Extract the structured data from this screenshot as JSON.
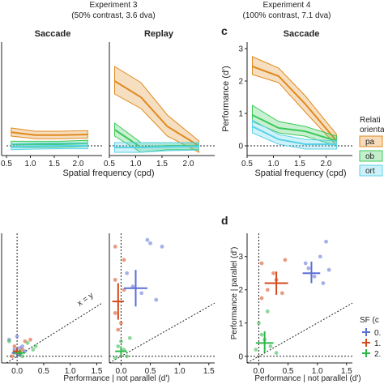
{
  "header": {
    "left_title": "Experiment 3",
    "left_sub": "(50% contrast, 3.6 dva)",
    "right_title": "Experiment 4",
    "right_sub": "(100% contrast, 7.1 dva)"
  },
  "panel_labels": {
    "c": "c",
    "d": "d"
  },
  "colors": {
    "parallel": "#e08a1e",
    "oblique": "#3cc95a",
    "orthogonal": "#5ad2e8",
    "sf_low": "#5b6fd6",
    "sf_mid": "#d44a1a",
    "sf_high": "#2fb84a"
  },
  "legend_orientation": {
    "title_line1": "Relati",
    "title_line2": "orienta",
    "items": [
      {
        "key": "parallel",
        "label": "pa"
      },
      {
        "key": "oblique",
        "label": "ob"
      },
      {
        "key": "orthogonal",
        "label": "ort"
      }
    ]
  },
  "legend_sf": {
    "title": "SF (c",
    "items": [
      {
        "key": "sf_low",
        "label": "0."
      },
      {
        "key": "sf_mid",
        "label": "1."
      },
      {
        "key": "sf_high",
        "label": "2."
      }
    ]
  },
  "chart_data": [
    {
      "id": "exp3_saccade",
      "type": "line",
      "title": "Saccade",
      "x": [
        0.6,
        1.1,
        1.6,
        2.2
      ],
      "xlim": [
        0.5,
        2.5
      ],
      "ylim": [
        -0.3,
        3.2
      ],
      "xticks": [
        "0.5",
        "1.0",
        "1.5",
        "2.0"
      ],
      "series": [
        {
          "key": "parallel",
          "values": [
            0.42,
            0.33,
            0.33,
            0.35
          ],
          "lower": [
            0.3,
            0.22,
            0.22,
            0.24
          ],
          "upper": [
            0.55,
            0.45,
            0.45,
            0.47
          ]
        },
        {
          "key": "oblique",
          "values": [
            0.05,
            0.05,
            0.05,
            0.08
          ],
          "lower": [
            -0.05,
            -0.05,
            -0.05,
            -0.02
          ],
          "upper": [
            0.14,
            0.14,
            0.14,
            0.17
          ]
        },
        {
          "key": "orthogonal",
          "values": [
            -0.03,
            -0.01,
            0.0,
            0.0
          ],
          "lower": [
            -0.12,
            -0.1,
            -0.09,
            -0.09
          ],
          "upper": [
            0.06,
            0.08,
            0.09,
            0.09
          ]
        }
      ]
    },
    {
      "id": "exp3_replay",
      "type": "line",
      "title": "Replay",
      "x": [
        0.6,
        1.1,
        1.6,
        2.2
      ],
      "xlim": [
        0.5,
        2.5
      ],
      "ylim": [
        -0.3,
        3.2
      ],
      "xticks": [
        "0.5",
        "1.0",
        "1.5",
        "2.0"
      ],
      "series": [
        {
          "key": "parallel",
          "values": [
            2.0,
            1.5,
            0.6,
            0.0
          ],
          "lower": [
            1.6,
            1.15,
            0.3,
            -0.2
          ],
          "upper": [
            2.45,
            1.95,
            0.95,
            0.15
          ]
        },
        {
          "key": "oblique",
          "values": [
            0.5,
            -0.05,
            0.0,
            0.0
          ],
          "lower": [
            0.3,
            -0.2,
            -0.12,
            -0.12
          ],
          "upper": [
            0.7,
            0.1,
            0.1,
            0.1
          ]
        },
        {
          "key": "orthogonal",
          "values": [
            -0.05,
            -0.05,
            -0.03,
            -0.02
          ],
          "lower": [
            -0.2,
            -0.2,
            -0.15,
            -0.13
          ],
          "upper": [
            0.1,
            0.1,
            0.1,
            0.1
          ]
        }
      ]
    },
    {
      "id": "exp4_saccade",
      "type": "line",
      "title": "Saccade",
      "x": [
        0.6,
        1.1,
        1.6,
        2.2
      ],
      "xlim": [
        0.5,
        2.5
      ],
      "ylim": [
        -0.3,
        3.2
      ],
      "yticks": [
        0,
        1,
        2,
        3
      ],
      "xticks": [
        "0.5",
        "1.0",
        "1.5",
        "2.0"
      ],
      "ylabel": "Performance (d')",
      "series": [
        {
          "key": "parallel",
          "values": [
            2.45,
            2.15,
            1.3,
            0.15
          ],
          "lower": [
            2.2,
            1.95,
            1.05,
            0.0
          ],
          "upper": [
            2.75,
            2.4,
            1.55,
            0.35
          ]
        },
        {
          "key": "oblique",
          "values": [
            0.95,
            0.55,
            0.45,
            0.15
          ],
          "lower": [
            0.75,
            0.4,
            0.3,
            0.0
          ],
          "upper": [
            1.25,
            0.75,
            0.6,
            0.3
          ]
        },
        {
          "key": "orthogonal",
          "values": [
            0.6,
            0.2,
            0.05,
            0.05
          ],
          "lower": [
            0.4,
            0.05,
            -0.1,
            -0.1
          ],
          "upper": [
            0.8,
            0.35,
            0.2,
            0.15
          ]
        }
      ]
    },
    {
      "id": "exp3_saccade_scatter",
      "type": "scatter",
      "xlim": [
        -0.2,
        1.6
      ],
      "ylim": [
        -0.2,
        3.7
      ],
      "xticks": [
        "0.0",
        "0.5",
        "1.0",
        "1.5"
      ],
      "diagonal_label": "x = y",
      "series": [
        {
          "key": "sf_low",
          "mean": [
            0.0,
            0.1
          ],
          "ci_x": [
            -0.1,
            0.1
          ],
          "ci_y": [
            -0.02,
            0.25
          ],
          "points": [
            [
              0.0,
              0.6
            ],
            [
              -0.15,
              0.5
            ],
            [
              0.05,
              0.25
            ],
            [
              0.15,
              0.15
            ],
            [
              -0.05,
              0.2
            ],
            [
              0.05,
              0.05
            ],
            [
              0.1,
              0.3
            ]
          ]
        },
        {
          "key": "sf_mid",
          "mean": [
            0.0,
            0.15
          ],
          "ci_x": [
            -0.08,
            0.08
          ],
          "ci_y": [
            0.05,
            0.25
          ],
          "points": [
            [
              -0.1,
              0.0
            ],
            [
              0.05,
              0.1
            ],
            [
              0.25,
              0.5
            ],
            [
              0.1,
              0.2
            ],
            [
              -0.05,
              0.3
            ],
            [
              0.15,
              0.45
            ]
          ]
        },
        {
          "key": "sf_high",
          "mean": [
            0.05,
            0.1
          ],
          "ci_x": [
            -0.05,
            0.15
          ],
          "ci_y": [
            0.0,
            0.2
          ],
          "points": [
            [
              -0.15,
              0.45
            ],
            [
              0.3,
              0.2
            ],
            [
              0.1,
              0.0
            ],
            [
              0.35,
              0.3
            ],
            [
              -0.05,
              0.1
            ],
            [
              0.2,
              0.4
            ]
          ]
        }
      ]
    },
    {
      "id": "exp3_replay_scatter",
      "type": "scatter",
      "xlim": [
        -0.2,
        1.6
      ],
      "ylim": [
        -0.2,
        3.7
      ],
      "xticks": [
        "0.0",
        "0.5",
        "1.0",
        "1.5"
      ],
      "series": [
        {
          "key": "sf_low",
          "mean": [
            0.25,
            2.05
          ],
          "ci_x": [
            0.05,
            0.45
          ],
          "ci_y": [
            1.5,
            2.6
          ],
          "points": [
            [
              0.5,
              3.4
            ],
            [
              0.7,
              3.3
            ],
            [
              0.45,
              3.5
            ],
            [
              0.1,
              2.5
            ],
            [
              0.2,
              2.1
            ],
            [
              0.6,
              1.7
            ],
            [
              0.35,
              1.9
            ]
          ]
        },
        {
          "key": "sf_mid",
          "mean": [
            -0.05,
            1.65
          ],
          "ci_x": [
            -0.15,
            0.05
          ],
          "ci_y": [
            1.1,
            2.2
          ],
          "points": [
            [
              -0.1,
              3.3
            ],
            [
              0.05,
              2.9
            ],
            [
              -0.1,
              2.3
            ],
            [
              0.05,
              2.0
            ],
            [
              -0.1,
              1.3
            ],
            [
              0.0,
              1.0
            ],
            [
              -0.05,
              0.8
            ]
          ]
        },
        {
          "key": "sf_high",
          "mean": [
            0.0,
            0.15
          ],
          "ci_x": [
            -0.1,
            0.1
          ],
          "ci_y": [
            0.0,
            0.3
          ],
          "points": [
            [
              0.0,
              0.45
            ],
            [
              0.05,
              0.2
            ],
            [
              -0.1,
              -0.05
            ],
            [
              0.15,
              0.55
            ],
            [
              0.1,
              0.0
            ],
            [
              -0.05,
              0.3
            ]
          ]
        }
      ]
    },
    {
      "id": "exp4_saccade_scatter",
      "type": "scatter",
      "xlim": [
        -0.2,
        1.6
      ],
      "ylim": [
        -0.2,
        3.7
      ],
      "xticks": [
        "0.0",
        "0.5",
        "1.0",
        "1.5"
      ],
      "yticks": [
        0,
        1,
        2,
        3
      ],
      "ylabel": "Performance | parallel (d')",
      "xlabel": "Performance | not parallel (d')",
      "series": [
        {
          "key": "sf_low",
          "mean": [
            0.9,
            2.5
          ],
          "ci_x": [
            0.75,
            1.05
          ],
          "ci_y": [
            2.2,
            2.85
          ],
          "points": [
            [
              1.15,
              3.45
            ],
            [
              1.05,
              3.0
            ],
            [
              0.85,
              2.65
            ],
            [
              0.95,
              2.4
            ],
            [
              1.1,
              2.2
            ],
            [
              0.8,
              2.8
            ],
            [
              1.2,
              2.6
            ]
          ]
        },
        {
          "key": "sf_mid",
          "mean": [
            0.3,
            2.2
          ],
          "ci_x": [
            0.1,
            0.5
          ],
          "ci_y": [
            1.85,
            2.55
          ],
          "points": [
            [
              0.05,
              2.8
            ],
            [
              0.45,
              2.9
            ],
            [
              0.25,
              2.5
            ],
            [
              0.4,
              1.9
            ],
            [
              0.05,
              1.75
            ],
            [
              0.3,
              2.3
            ],
            [
              0.15,
              2.0
            ]
          ]
        },
        {
          "key": "sf_high",
          "mean": [
            0.1,
            0.4
          ],
          "ci_x": [
            -0.05,
            0.25
          ],
          "ci_y": [
            0.1,
            0.75
          ],
          "points": [
            [
              0.15,
              1.35
            ],
            [
              0.0,
              1.0
            ],
            [
              0.05,
              0.65
            ],
            [
              0.2,
              0.3
            ],
            [
              -0.05,
              0.2
            ],
            [
              0.3,
              0.1
            ],
            [
              0.1,
              0.5
            ]
          ]
        }
      ]
    }
  ],
  "shared_labels": {
    "top_xlabel": "Spatial frequency (cpd)",
    "bottom_xlabel": "Performance | not parallel (d')"
  }
}
